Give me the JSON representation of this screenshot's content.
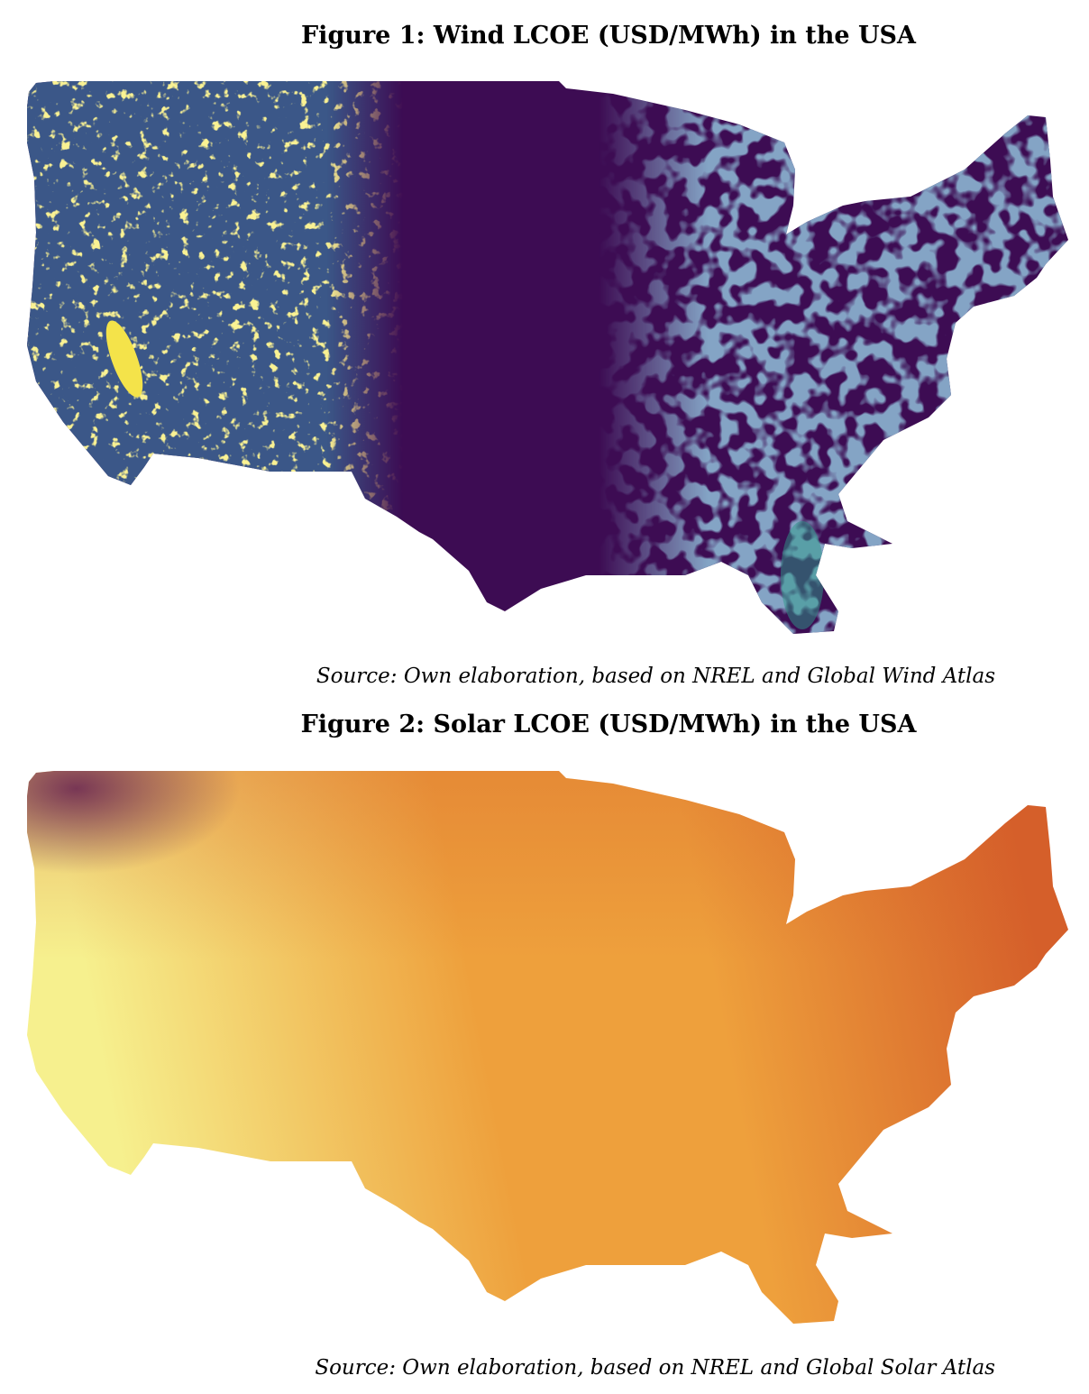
{
  "figure1": {
    "title": "Figure 1: Wind LCOE (USD/MWh) in the USA",
    "source": "Source: Own elaboration, based on NREL and Global Wind Atlas",
    "colors": {
      "base": "#3d0c53",
      "mid": "#3b5f8e",
      "teal": "#2e9a8a",
      "high": "#f4e34a"
    }
  },
  "figure2": {
    "title": "Figure 2: Solar LCOE (USD/MWh) in the USA",
    "source": "Source: Own elaboration, based on NREL and Global Solar Atlas",
    "colors": {
      "low": "#f6f08e",
      "mid": "#eea03c",
      "high": "#d55f2a",
      "peak": "#6b2752"
    }
  }
}
